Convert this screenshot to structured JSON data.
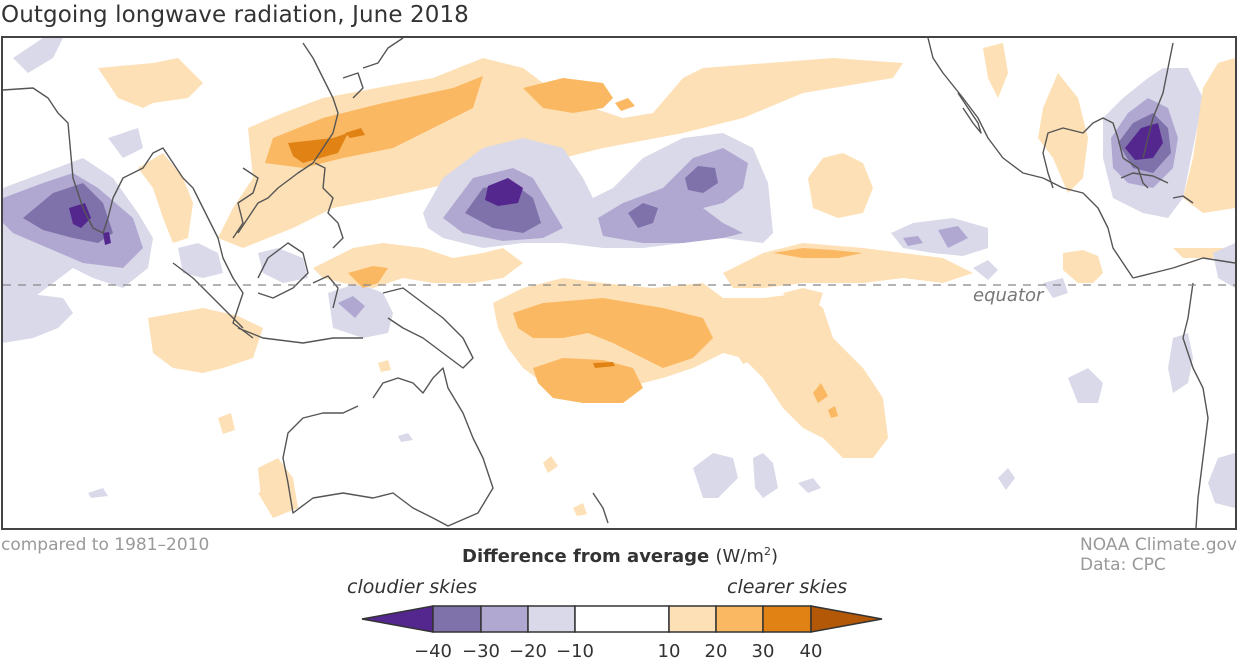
{
  "title": "Outgoing longwave radiation, June 2018",
  "baseline_note": "compared to 1981–2010",
  "credit": {
    "line1": "NOAA Climate.gov",
    "line2": "Data: CPC"
  },
  "map": {
    "region": "Indian Ocean to Atlantic, tropics and subtropics",
    "equator_label": "equator",
    "variable": "Outgoing longwave radiation anomaly",
    "period": "June 2018"
  },
  "legend": {
    "title": "Difference from average",
    "unit_base": "(W/m",
    "unit_exp": "2",
    "unit_close": ")",
    "left_label": "cloudier skies",
    "right_label": "clearer skies",
    "bins": [
      {
        "range": "< -40",
        "color": "#54278f"
      },
      {
        "range": "-40 to -30",
        "color": "#7f72ab"
      },
      {
        "range": "-30 to -20",
        "color": "#b0a8d0"
      },
      {
        "range": "-20 to -10",
        "color": "#d9d9ea"
      },
      {
        "range": "-10 to 10",
        "color": "#ffffff"
      },
      {
        "range": "10 to 20",
        "color": "#fde0b5"
      },
      {
        "range": "20 to 30",
        "color": "#fbb862"
      },
      {
        "range": "30 to 40",
        "color": "#e08214"
      },
      {
        "range": "> 40",
        "color": "#b35806"
      }
    ],
    "ticks": [
      "−40",
      "−30",
      "−20",
      "−10",
      "10",
      "20",
      "30",
      "40"
    ]
  },
  "colors": {
    "frame": "#444444",
    "coastline": "#555555",
    "equator_line": "#888888"
  }
}
